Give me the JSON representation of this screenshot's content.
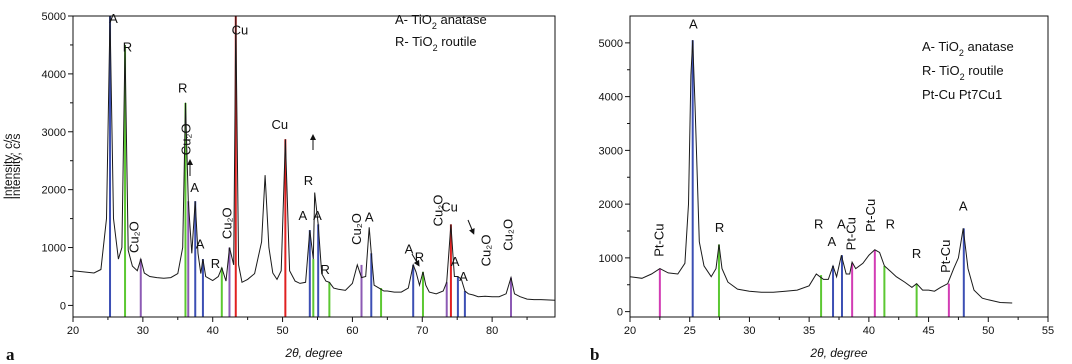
{
  "colors": {
    "anatase": "#3c4fb4",
    "rutile": "#5cc832",
    "cu": "#e02020",
    "cu2o": "#8c5ab4",
    "ptcu": "#d23cb4",
    "trace": "#1a1a1a"
  },
  "chart_data": [
    {
      "type": "line",
      "panel_label": "a",
      "xlabel": "2θ, degree",
      "ylabel": "Intensity, c/s",
      "xlim": [
        20,
        89
      ],
      "ylim": [
        -200,
        5000
      ],
      "xticks": [
        20,
        30,
        40,
        50,
        60,
        70,
        80
      ],
      "xtick_labels": [
        "20",
        "30",
        "40",
        "50",
        "60",
        "70",
        "80"
      ],
      "yticks": [
        0,
        1000,
        2000,
        3000,
        4000,
        5000
      ],
      "ytick_labels": [
        "0",
        "1000",
        "2000",
        "3000",
        "4000",
        "5000"
      ],
      "legend": {
        "placement": "top-right",
        "entries": [
          {
            "prefix": "A- TiO",
            "sub": "2",
            "suffix": " anatase",
            "color": "#3c4fb4"
          },
          {
            "prefix": "R- TiO",
            "sub": "2",
            "suffix": " routile",
            "color": "#5cc832"
          }
        ]
      },
      "series": [
        {
          "x": [
            20,
            23,
            24,
            24.8,
            25.3,
            25.8,
            26.5,
            27,
            27.45,
            27.9,
            28.5,
            29.2,
            29.7,
            30.2,
            31,
            32,
            33,
            34,
            35,
            35.7,
            36.1,
            36.5,
            37.0,
            37.5,
            37.9,
            38.3,
            38.6,
            39,
            40,
            40.8,
            41.3,
            41.9,
            42.4,
            43.0,
            43.3,
            43.7,
            44.2,
            45,
            46,
            47,
            47.5,
            48.05,
            48.6,
            49.2,
            49.8,
            50.4,
            51.0,
            51.8,
            52.5,
            53.3,
            53.9,
            54.4,
            54.6,
            55.1,
            55.6,
            56.2,
            56.7,
            57.3,
            58,
            59,
            60,
            60.7,
            61.3,
            61.9,
            62.4,
            62.7,
            63.1,
            63.8,
            64.5,
            65,
            66,
            67,
            68,
            68.7,
            69.1,
            69.6,
            70.1,
            70.5,
            71,
            72,
            73,
            73.5,
            74.1,
            74.6,
            75.1,
            75.6,
            76.1,
            76.6,
            77.3,
            78,
            79,
            80,
            81,
            82,
            82.7,
            83.2,
            84,
            85,
            86,
            87,
            89
          ],
          "y": [
            600,
            560,
            620,
            1500,
            5000,
            1500,
            800,
            1000,
            4500,
            950,
            680,
            600,
            800,
            560,
            500,
            480,
            470,
            480,
            550,
            1000,
            3500,
            1800,
            900,
            1800,
            900,
            550,
            800,
            500,
            430,
            500,
            650,
            420,
            1000,
            700,
            5000,
            700,
            400,
            450,
            550,
            1100,
            2250,
            1000,
            560,
            450,
            600,
            2870,
            600,
            420,
            380,
            400,
            1300,
            800,
            1950,
            1400,
            550,
            420,
            400,
            300,
            280,
            260,
            380,
            700,
            480,
            500,
            1350,
            900,
            350,
            300,
            250,
            250,
            230,
            230,
            300,
            700,
            580,
            350,
            580,
            350,
            230,
            200,
            250,
            400,
            1400,
            500,
            500,
            450,
            250,
            200,
            180,
            150,
            160,
            150,
            150,
            200,
            480,
            200,
            150,
            110,
            100,
            100,
            90
          ]
        }
      ],
      "peak_lines": [
        {
          "x": 25.3,
          "y": 5000,
          "phase": "anatase"
        },
        {
          "x": 27.45,
          "y": 4500,
          "phase": "rutile"
        },
        {
          "x": 29.7,
          "y": 800,
          "phase": "cu2o"
        },
        {
          "x": 36.1,
          "y": 3500,
          "phase": "rutile"
        },
        {
          "x": 36.5,
          "y": 1800,
          "phase": "cu2o"
        },
        {
          "x": 37.5,
          "y": 1800,
          "phase": "anatase"
        },
        {
          "x": 38.6,
          "y": 800,
          "phase": "anatase"
        },
        {
          "x": 41.3,
          "y": 650,
          "phase": "rutile"
        },
        {
          "x": 42.4,
          "y": 1000,
          "phase": "cu2o"
        },
        {
          "x": 43.3,
          "y": 5000,
          "phase": "cu"
        },
        {
          "x": 50.4,
          "y": 2870,
          "phase": "cu"
        },
        {
          "x": 53.9,
          "y": 1300,
          "phase": "anatase"
        },
        {
          "x": 54.4,
          "y": 800,
          "phase": "rutile"
        },
        {
          "x": 55.1,
          "y": 1400,
          "phase": "anatase"
        },
        {
          "x": 56.7,
          "y": 400,
          "phase": "rutile"
        },
        {
          "x": 61.3,
          "y": 700,
          "phase": "cu2o"
        },
        {
          "x": 62.7,
          "y": 900,
          "phase": "anatase"
        },
        {
          "x": 64.1,
          "y": 300,
          "phase": "rutile"
        },
        {
          "x": 68.7,
          "y": 700,
          "phase": "anatase"
        },
        {
          "x": 70.1,
          "y": 580,
          "phase": "rutile"
        },
        {
          "x": 73.5,
          "y": 400,
          "phase": "cu2o"
        },
        {
          "x": 74.1,
          "y": 1400,
          "phase": "cu"
        },
        {
          "x": 75.1,
          "y": 500,
          "phase": "anatase"
        },
        {
          "x": 76.1,
          "y": 250,
          "phase": "anatase"
        },
        {
          "x": 82.7,
          "y": 480,
          "phase": "cu2o"
        }
      ],
      "annotations": [
        {
          "text": "A",
          "x": 25.8,
          "y": 4880,
          "color": "#111"
        },
        {
          "text": "R",
          "x": 27.8,
          "y": 4390,
          "color": "#111"
        },
        {
          "text": "Cu",
          "x": 43.9,
          "y": 4680,
          "color": "#111"
        },
        {
          "text": "Cu₂O",
          "x": 29.4,
          "y": 1180,
          "vertical": true,
          "color": "#111"
        },
        {
          "text": "R",
          "x": 35.7,
          "y": 3680,
          "color": "#111"
        },
        {
          "text": "Cu₂O",
          "x": 36.8,
          "y": 2870,
          "vertical": true,
          "color": "#111"
        },
        {
          "text": "A",
          "x": 37.4,
          "y": 1960,
          "color": "#111"
        },
        {
          "text": "A",
          "x": 38.2,
          "y": 980,
          "color": "#111"
        },
        {
          "text": "R",
          "x": 40.4,
          "y": 650,
          "color": "#111"
        },
        {
          "text": "Cu₂O",
          "x": 42.7,
          "y": 1420,
          "vertical": true,
          "color": "#111"
        },
        {
          "text": "Cu",
          "x": 49.6,
          "y": 3050,
          "color": "#111"
        },
        {
          "text": "A",
          "x": 52.9,
          "y": 1480,
          "color": "#111"
        },
        {
          "text": "R",
          "x": 53.7,
          "y": 2080,
          "color": "#111"
        },
        {
          "text": "A",
          "x": 55.0,
          "y": 1480,
          "color": "#111"
        },
        {
          "text": "R",
          "x": 56.1,
          "y": 540,
          "color": "#111"
        },
        {
          "text": "Cu₂O",
          "x": 61.2,
          "y": 1320,
          "vertical": true,
          "color": "#111"
        },
        {
          "text": "A",
          "x": 62.4,
          "y": 1450,
          "color": "#111"
        },
        {
          "text": "A",
          "x": 68.1,
          "y": 900,
          "color": "#111"
        },
        {
          "text": "R",
          "x": 69.6,
          "y": 760,
          "color": "#111"
        },
        {
          "text": "Cu₂O",
          "x": 72.9,
          "y": 1640,
          "vertical": true,
          "color": "#111"
        },
        {
          "text": "Cu",
          "x": 73.9,
          "y": 1620,
          "color": "#111"
        },
        {
          "text": "A",
          "x": 74.7,
          "y": 680,
          "color": "#111"
        },
        {
          "text": "A",
          "x": 75.9,
          "y": 420,
          "color": "#111"
        },
        {
          "text": "Cu₂O",
          "x": 79.8,
          "y": 950,
          "vertical": true,
          "color": "#111"
        },
        {
          "text": "Cu₂O",
          "x": 82.9,
          "y": 1220,
          "vertical": true,
          "color": "#111"
        }
      ]
    },
    {
      "type": "line",
      "panel_label": "b",
      "xlabel": "2θ, degree",
      "ylabel": "Intensity, c/s",
      "xlim": [
        20,
        55
      ],
      "ylim": [
        -100,
        5500
      ],
      "xticks": [
        20,
        25,
        30,
        35,
        40,
        45,
        50,
        55
      ],
      "xtick_labels": [
        "20",
        "25",
        "30",
        "35",
        "40",
        "45",
        "50",
        "55"
      ],
      "yticks": [
        0,
        1000,
        2000,
        3000,
        4000,
        5000
      ],
      "ytick_labels": [
        "0",
        "1000",
        "2000",
        "3000",
        "4000",
        "5000"
      ],
      "legend": {
        "placement": "top-right",
        "entries": [
          {
            "prefix": "A- TiO",
            "sub": "2",
            "suffix": " anatase",
            "color": "#3c4fb4"
          },
          {
            "prefix": "R- TiO",
            "sub": "2",
            "suffix": " routile",
            "color": "#5cc832"
          },
          {
            "prefix": "Pt-Cu   Pt7Cu1",
            "sub": "",
            "suffix": "",
            "color": "#d23cb4"
          }
        ]
      },
      "series": [
        {
          "x": [
            20,
            21,
            21.8,
            22.5,
            23.2,
            24,
            24.6,
            24.9,
            25.1,
            25.25,
            25.45,
            25.8,
            26.2,
            26.8,
            27.2,
            27.45,
            27.7,
            28.2,
            29,
            30,
            31,
            32,
            33,
            34,
            35,
            35.6,
            35.9,
            36.2,
            36.6,
            37.0,
            37.3,
            37.7,
            38.1,
            38.4,
            38.6,
            38.9,
            39.5,
            40,
            40.5,
            40.9,
            41.3,
            41.8,
            42.3,
            43,
            43.6,
            44,
            44.5,
            45,
            45.5,
            46,
            46.6,
            47.1,
            47.5,
            47.9,
            48.3,
            48.8,
            49.5,
            50,
            51,
            52
          ],
          "y": [
            650,
            620,
            700,
            800,
            720,
            700,
            900,
            2000,
            4400,
            5050,
            3800,
            1300,
            850,
            650,
            800,
            1250,
            800,
            550,
            420,
            380,
            360,
            360,
            380,
            400,
            480,
            700,
            650,
            600,
            600,
            850,
            650,
            1050,
            700,
            700,
            920,
            800,
            900,
            1050,
            1150,
            1100,
            850,
            750,
            650,
            550,
            450,
            520,
            400,
            400,
            380,
            450,
            520,
            800,
            1000,
            1550,
            800,
            400,
            250,
            220,
            170,
            160
          ]
        }
      ],
      "peak_lines": [
        {
          "x": 22.5,
          "y": 800,
          "phase": "ptcu"
        },
        {
          "x": 25.25,
          "y": 5050,
          "phase": "anatase"
        },
        {
          "x": 27.45,
          "y": 1250,
          "phase": "rutile"
        },
        {
          "x": 36.0,
          "y": 680,
          "phase": "rutile"
        },
        {
          "x": 37.0,
          "y": 850,
          "phase": "anatase"
        },
        {
          "x": 37.75,
          "y": 1050,
          "phase": "anatase"
        },
        {
          "x": 38.6,
          "y": 900,
          "phase": "ptcu"
        },
        {
          "x": 40.5,
          "y": 1150,
          "phase": "ptcu"
        },
        {
          "x": 41.3,
          "y": 850,
          "phase": "rutile"
        },
        {
          "x": 44.0,
          "y": 520,
          "phase": "rutile"
        },
        {
          "x": 46.7,
          "y": 520,
          "phase": "ptcu"
        },
        {
          "x": 47.95,
          "y": 1550,
          "phase": "anatase"
        }
      ],
      "annotations": [
        {
          "text": "A",
          "x": 25.3,
          "y": 5270,
          "color": "#3c4fb4"
        },
        {
          "text": "Pt-Cu",
          "x": 22.8,
          "y": 1330,
          "vertical": true,
          "color": "#d23cb4"
        },
        {
          "text": "R",
          "x": 27.5,
          "y": 1480,
          "color": "#5cc832"
        },
        {
          "text": "R",
          "x": 35.8,
          "y": 1550,
          "color": "#5cc832"
        },
        {
          "text": "A",
          "x": 36.9,
          "y": 1220,
          "color": "#3c4fb4"
        },
        {
          "text": "A",
          "x": 37.7,
          "y": 1550,
          "color": "#3c4fb4"
        },
        {
          "text": "Pt-Cu",
          "x": 38.9,
          "y": 1450,
          "vertical": true,
          "color": "#d23cb4"
        },
        {
          "text": "Pt-Cu",
          "x": 40.5,
          "y": 1790,
          "vertical": true,
          "color": "#d23cb4"
        },
        {
          "text": "R",
          "x": 41.8,
          "y": 1550,
          "color": "#5cc832"
        },
        {
          "text": "R",
          "x": 44.0,
          "y": 1000,
          "color": "#5cc832"
        },
        {
          "text": "Pt-Cu",
          "x": 46.8,
          "y": 1030,
          "vertical": true,
          "color": "#d23cb4"
        },
        {
          "text": "A",
          "x": 47.9,
          "y": 1880,
          "color": "#3c4fb4"
        }
      ]
    }
  ]
}
